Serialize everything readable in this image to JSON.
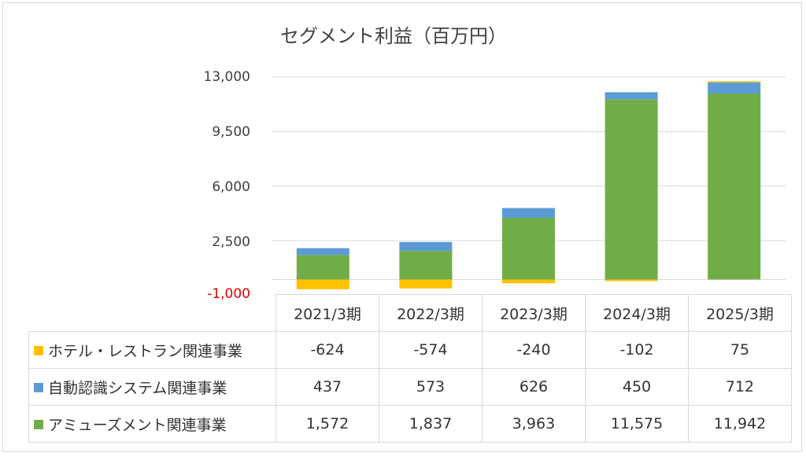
{
  "chart_data": {
    "type": "bar",
    "stacked": true,
    "title": "セグメント利益（百万円）",
    "categories": [
      "2021/3期",
      "2022/3期",
      "2023/3期",
      "2024/3期",
      "2025/3期"
    ],
    "series": [
      {
        "name": "ホテル・レストラン関連事業",
        "values": [
          -624,
          -574,
          -240,
          -102,
          75
        ],
        "labels": [
          "-624",
          "-574",
          "-240",
          "-102",
          "75"
        ],
        "color": "#ffc000"
      },
      {
        "name": "自動認識システム関連事業",
        "values": [
          437,
          573,
          626,
          450,
          712
        ],
        "labels": [
          "437",
          "573",
          "626",
          "450",
          "712"
        ],
        "color": "#5b9bd5"
      },
      {
        "name": "アミューズメント関連事業",
        "values": [
          1572,
          1837,
          3963,
          11575,
          11942
        ],
        "labels": [
          "1,572",
          "1,837",
          "3,963",
          "11,575",
          "11,942"
        ],
        "color": "#70ad47"
      }
    ],
    "yticks": [
      "13,000",
      "9,500",
      "6,000",
      "2,500",
      "-1,000"
    ],
    "ytick_values": [
      13000,
      9500,
      6000,
      2500,
      -1000
    ],
    "ylim": [
      -1000,
      13000
    ],
    "grid": true,
    "legend": "data-table"
  }
}
